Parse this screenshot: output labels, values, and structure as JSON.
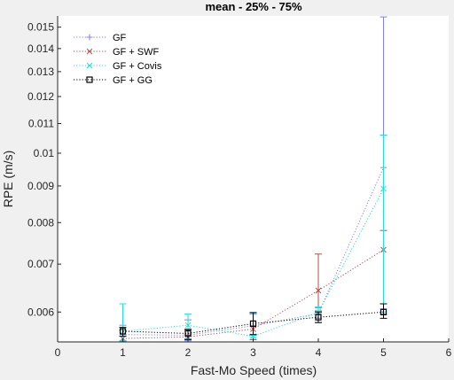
{
  "chart_data": {
    "type": "line",
    "title": "mean - 25% - 75%",
    "xlabel": "Fast-Mo Speed (times)",
    "ylabel": "RPE (m/s)",
    "xlim": [
      0,
      6
    ],
    "ylim": [
      0.00545,
      0.01555
    ],
    "yscale": "log",
    "grid": false,
    "legend_position": "top-left",
    "x_ticks": [
      "0",
      "1",
      "2",
      "3",
      "4",
      "5",
      "6"
    ],
    "y_ticks": [
      "0.006",
      "0.007",
      "0.008",
      "0.009",
      "0.01",
      "0.011",
      "0.012",
      "0.013",
      "0.014",
      "0.015"
    ],
    "x": [
      1,
      2,
      3,
      4,
      5
    ],
    "series": [
      {
        "name": "GF",
        "color": "#8080ff",
        "marker": "plus",
        "values": [
          0.00558,
          0.00557,
          0.00574,
          0.00597,
          0.00955
        ],
        "lower": [
          0.00547,
          0.00547,
          0.00557,
          0.00588,
          0.00606
        ],
        "upper": [
          0.00575,
          0.00585,
          0.00596,
          0.00608,
          0.0155
        ]
      },
      {
        "name": "GF + SWF",
        "color": "#b05050",
        "marker": "x",
        "values": [
          0.00551,
          0.00554,
          0.00568,
          0.00643,
          0.00733
        ],
        "lower": [
          0.00546,
          0.0055,
          0.00549,
          0.00602,
          0.00596
        ],
        "upper": [
          0.00566,
          0.00568,
          0.00597,
          0.00723,
          0.0078
        ]
      },
      {
        "name": "GF + Covis",
        "color": "#20e0e0",
        "marker": "x",
        "values": [
          0.00564,
          0.00575,
          0.00555,
          0.00599,
          0.00892
        ],
        "lower": [
          0.00547,
          0.00551,
          0.00553,
          0.0058,
          0.006
        ],
        "upper": [
          0.00616,
          0.00596,
          0.00597,
          0.0061,
          0.0106
        ]
      },
      {
        "name": "GF + GG",
        "color": "#000000",
        "marker": "square",
        "values": [
          0.00564,
          0.0056,
          0.00578,
          0.0059,
          0.006
        ],
        "lower": [
          0.00555,
          0.00549,
          0.00558,
          0.0058,
          0.00588
        ],
        "upper": [
          0.00571,
          0.00567,
          0.00599,
          0.006,
          0.00616
        ]
      }
    ]
  }
}
